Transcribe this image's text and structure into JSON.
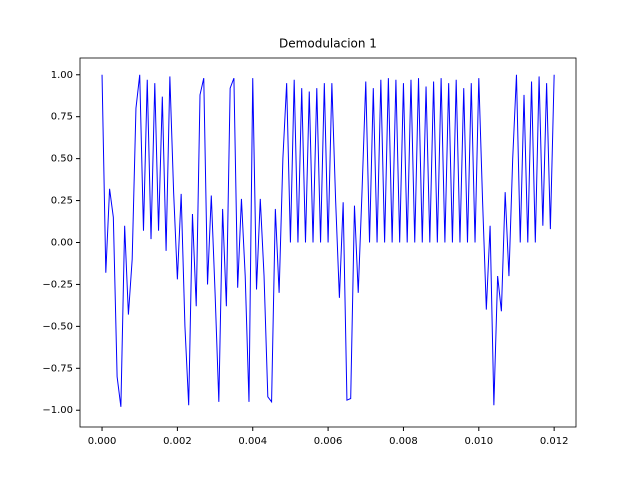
{
  "chart_data": {
    "type": "line",
    "title": "Demodulacion 1",
    "x": [
      0.0,
      0.0001,
      0.0002,
      0.0003,
      0.0004,
      0.0005,
      0.0006,
      0.0007,
      0.0008,
      0.0009,
      0.001,
      0.0011,
      0.0012,
      0.0013,
      0.0014,
      0.0015,
      0.0016,
      0.0017,
      0.0018,
      0.0019,
      0.002,
      0.0021,
      0.0022,
      0.0023,
      0.0024,
      0.0025,
      0.0026,
      0.0027,
      0.0028,
      0.0029,
      0.003,
      0.0031,
      0.0032,
      0.0033,
      0.0034,
      0.0035,
      0.0036,
      0.0037,
      0.0038,
      0.0039,
      0.004,
      0.0041,
      0.0042,
      0.0043,
      0.0044,
      0.0045,
      0.0046,
      0.0047,
      0.0048,
      0.0049,
      0.005,
      0.0051,
      0.0052,
      0.0053,
      0.0054,
      0.0055,
      0.0056,
      0.0057,
      0.0058,
      0.0059,
      0.006,
      0.0061,
      0.0062,
      0.0063,
      0.0064,
      0.0065,
      0.0066,
      0.0067,
      0.0068,
      0.0069,
      0.007,
      0.0071,
      0.0072,
      0.0073,
      0.0074,
      0.0075,
      0.0076,
      0.0077,
      0.0078,
      0.0079,
      0.008,
      0.0081,
      0.0082,
      0.0083,
      0.0084,
      0.0085,
      0.0086,
      0.0087,
      0.0088,
      0.0089,
      0.009,
      0.0091,
      0.0092,
      0.0093,
      0.0094,
      0.0095,
      0.0096,
      0.0097,
      0.0098,
      0.0099,
      0.01,
      0.0101,
      0.0102,
      0.0103,
      0.0104,
      0.0105,
      0.0106,
      0.0107,
      0.0108,
      0.0109,
      0.011,
      0.0111,
      0.0112,
      0.0113,
      0.0114,
      0.0115,
      0.0116,
      0.0117,
      0.0118,
      0.0119,
      0.012
    ],
    "series": [
      {
        "name": "Demodulacion 1",
        "color": "#0000ff",
        "values": [
          1.0,
          -0.18,
          0.32,
          0.15,
          -0.8,
          -0.98,
          0.1,
          -0.43,
          -0.1,
          0.8,
          1.0,
          0.07,
          0.97,
          0.02,
          0.95,
          0.07,
          0.87,
          -0.05,
          0.99,
          0.3,
          -0.22,
          0.29,
          -0.5,
          -0.97,
          0.17,
          -0.38,
          0.88,
          0.98,
          -0.25,
          0.28,
          -0.3,
          -0.95,
          0.2,
          -0.38,
          0.92,
          0.98,
          -0.27,
          0.26,
          -0.2,
          -0.95,
          0.98,
          -0.28,
          0.26,
          -0.2,
          -0.92,
          -0.95,
          0.2,
          -0.3,
          0.5,
          0.95,
          0.0,
          0.97,
          0.0,
          0.92,
          0.0,
          0.9,
          0.0,
          0.92,
          0.0,
          0.95,
          0.0,
          0.95,
          0.25,
          -0.33,
          0.24,
          -0.94,
          -0.93,
          0.22,
          -0.3,
          0.3,
          0.96,
          0.0,
          0.92,
          0.0,
          0.97,
          0.0,
          0.98,
          0.0,
          0.97,
          0.0,
          0.95,
          0.0,
          0.97,
          0.0,
          0.98,
          0.0,
          0.93,
          0.0,
          0.96,
          0.0,
          0.98,
          0.0,
          0.95,
          0.0,
          0.97,
          0.0,
          0.92,
          0.0,
          0.95,
          0.0,
          0.98,
          0.25,
          -0.4,
          0.1,
          -0.97,
          -0.2,
          -0.41,
          0.3,
          -0.2,
          0.5,
          1.0,
          0.0,
          0.88,
          0.0,
          0.96,
          0.0,
          0.99,
          0.1,
          0.95,
          0.08,
          1.0
        ]
      }
    ],
    "xlim": [
      -0.000585,
      0.01258
    ],
    "ylim": [
      -1.1,
      1.1
    ],
    "xticks": [
      {
        "value": 0,
        "label": "0.000"
      },
      {
        "value": 0.002,
        "label": "0.002"
      },
      {
        "value": 0.004,
        "label": "0.004"
      },
      {
        "value": 0.006,
        "label": "0.006"
      },
      {
        "value": 0.008,
        "label": "0.008"
      },
      {
        "value": 0.01,
        "label": "0.010"
      },
      {
        "value": 0.012,
        "label": "0.012"
      }
    ],
    "yticks": [
      {
        "value": -1,
        "label": "−1.00"
      },
      {
        "value": -0.75,
        "label": "−0.75"
      },
      {
        "value": -0.5,
        "label": "−0.50"
      },
      {
        "value": -0.25,
        "label": "−0.25"
      },
      {
        "value": 0,
        "label": "0.00"
      },
      {
        "value": 0.25,
        "label": "0.25"
      },
      {
        "value": 0.5,
        "label": "0.50"
      },
      {
        "value": 0.75,
        "label": "0.75"
      },
      {
        "value": 1,
        "label": "1.00"
      }
    ],
    "grid": false
  }
}
